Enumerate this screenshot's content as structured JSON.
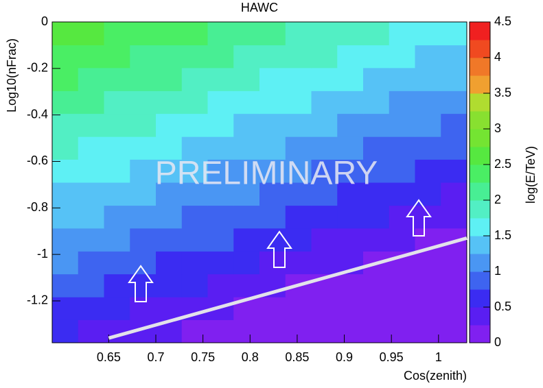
{
  "chart_data": {
    "type": "heatmap",
    "title": "HAWC",
    "x_label": "Cos(zenith)",
    "y_label": "Log10(nFrac)",
    "z_label": "log(E/TeV)",
    "annotation": "PRELIMINARY",
    "xlim": [
      0.59,
      1.03
    ],
    "ylim": [
      -1.38,
      0
    ],
    "zlim": [
      0,
      4.5
    ],
    "xticks": [
      0.65,
      0.7,
      0.75,
      0.8,
      0.85,
      0.9,
      0.95,
      1
    ],
    "yticks": [
      0,
      -0.2,
      -0.4,
      -0.6,
      -0.8,
      -1,
      -1.2
    ],
    "zticks": [
      0,
      0.5,
      1,
      1.5,
      2,
      2.5,
      3,
      3.5,
      4,
      4.5
    ],
    "xbins": [
      0.59,
      0.6175,
      0.645,
      0.6725,
      0.7,
      0.7275,
      0.755,
      0.7825,
      0.81,
      0.8375,
      0.865,
      0.8925,
      0.92,
      0.9475,
      0.975,
      1.0025,
      1.03
    ],
    "ybins": [
      -1.38,
      -1.281,
      -1.183,
      -1.084,
      -0.986,
      -0.887,
      -0.789,
      -0.69,
      -0.591,
      -0.493,
      -0.394,
      -0.296,
      -0.197,
      -0.099,
      0
    ],
    "z": [
      [
        0.53,
        0.46,
        0.39,
        0.32,
        0.26,
        0.19,
        0.12,
        0.1,
        0.1,
        0.1,
        0.1,
        0.1,
        0.1,
        0.1,
        0.1,
        0.1
      ],
      [
        0.69,
        0.62,
        0.55,
        0.48,
        0.42,
        0.35,
        0.28,
        0.21,
        0.14,
        0.1,
        0.1,
        0.1,
        0.1,
        0.1,
        0.1,
        0.1
      ],
      [
        0.85,
        0.78,
        0.71,
        0.64,
        0.58,
        0.51,
        0.44,
        0.37,
        0.3,
        0.23,
        0.17,
        0.1,
        0.1,
        0.1,
        0.1,
        0.1
      ],
      [
        1.01,
        0.94,
        0.87,
        0.8,
        0.74,
        0.67,
        0.6,
        0.53,
        0.46,
        0.39,
        0.33,
        0.26,
        0.19,
        0.12,
        0.1,
        0.1
      ],
      [
        1.17,
        1.1,
        1.03,
        0.96,
        0.9,
        0.83,
        0.76,
        0.69,
        0.62,
        0.55,
        0.49,
        0.42,
        0.35,
        0.28,
        0.21,
        0.14
      ],
      [
        1.33,
        1.26,
        1.19,
        1.12,
        1.06,
        0.99,
        0.92,
        0.85,
        0.78,
        0.71,
        0.65,
        0.58,
        0.51,
        0.44,
        0.37,
        0.3
      ],
      [
        1.49,
        1.42,
        1.35,
        1.28,
        1.22,
        1.15,
        1.08,
        1.01,
        0.94,
        0.87,
        0.81,
        0.74,
        0.67,
        0.6,
        0.53,
        0.46
      ],
      [
        1.65,
        1.58,
        1.51,
        1.44,
        1.38,
        1.31,
        1.24,
        1.17,
        1.1,
        1.03,
        0.97,
        0.9,
        0.83,
        0.76,
        0.69,
        0.62
      ],
      [
        1.81,
        1.74,
        1.67,
        1.6,
        1.54,
        1.47,
        1.4,
        1.33,
        1.26,
        1.19,
        1.13,
        1.06,
        0.99,
        0.92,
        0.85,
        0.78
      ],
      [
        1.97,
        1.9,
        1.83,
        1.76,
        1.7,
        1.63,
        1.56,
        1.49,
        1.42,
        1.35,
        1.29,
        1.22,
        1.15,
        1.08,
        1.01,
        0.94
      ],
      [
        2.13,
        2.06,
        1.99,
        1.92,
        1.86,
        1.79,
        1.72,
        1.65,
        1.58,
        1.51,
        1.45,
        1.38,
        1.31,
        1.24,
        1.17,
        1.1
      ],
      [
        2.29,
        2.22,
        2.15,
        2.08,
        2.02,
        1.95,
        1.88,
        1.81,
        1.74,
        1.67,
        1.61,
        1.54,
        1.47,
        1.4,
        1.33,
        1.26
      ],
      [
        2.45,
        2.38,
        2.31,
        2.24,
        2.18,
        2.11,
        2.04,
        1.97,
        1.9,
        1.83,
        1.77,
        1.7,
        1.63,
        1.56,
        1.49,
        1.42
      ],
      [
        2.61,
        2.54,
        2.47,
        2.4,
        2.34,
        2.27,
        2.2,
        2.13,
        2.06,
        1.99,
        1.93,
        1.86,
        1.79,
        1.72,
        1.65,
        1.58
      ]
    ],
    "colors": [
      "#8020f0",
      "#5a1ef2",
      "#3b2cf2",
      "#3e64f0",
      "#4a96f3",
      "#56c2f6",
      "#5ef0f4",
      "#52efc4",
      "#48ee94",
      "#4aee64",
      "#56e840",
      "#74e432",
      "#88e030",
      "#b0dc30",
      "#f0a030",
      "#f07828",
      "#f04a20",
      "#f02020"
    ],
    "cut_line": {
      "x": [
        0.65,
        1.03
      ],
      "y": [
        -1.36,
        -0.93
      ]
    }
  }
}
